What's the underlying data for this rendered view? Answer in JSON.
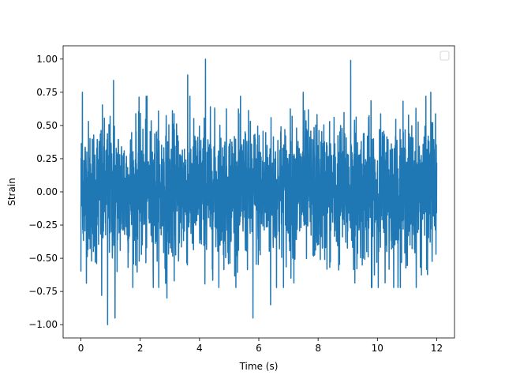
{
  "chart_data": {
    "type": "line",
    "title": "",
    "xlabel": "Time (s)",
    "ylabel": "Strain",
    "xlim": [
      -0.6,
      12.6
    ],
    "ylim": [
      -1.1,
      1.1
    ],
    "x_ticks": [
      0,
      2,
      4,
      6,
      8,
      10,
      12
    ],
    "x_tick_labels": [
      "0",
      "2",
      "4",
      "6",
      "8",
      "10",
      "12"
    ],
    "y_ticks": [
      -1.0,
      -0.75,
      -0.5,
      -0.25,
      0.0,
      0.25,
      0.5,
      0.75,
      1.0
    ],
    "y_tick_labels": [
      "−1.00",
      "−0.75",
      "−0.50",
      "−0.25",
      "0.00",
      "0.25",
      "0.50",
      "0.75",
      "1.00"
    ],
    "grid": false,
    "legend": {
      "placement": "upper-right",
      "entries": []
    },
    "series": [
      {
        "color": "#1f77b4",
        "x_start": 0.0,
        "x_end": 12.0,
        "typical_range": [
          -0.55,
          0.55
        ],
        "peaks": [
          {
            "x": 4.2,
            "y": 1.0
          },
          {
            "x": 9.1,
            "y": 0.99
          },
          {
            "x": 3.6,
            "y": 0.88
          },
          {
            "x": 1.1,
            "y": 0.84
          },
          {
            "x": 7.5,
            "y": 0.75
          },
          {
            "x": 0.05,
            "y": 0.75
          },
          {
            "x": 2.2,
            "y": 0.72
          },
          {
            "x": 11.8,
            "y": 0.75
          }
        ],
        "troughs": [
          {
            "x": 0.9,
            "y": -1.0
          },
          {
            "x": 1.15,
            "y": -0.95
          },
          {
            "x": 5.8,
            "y": -0.95
          },
          {
            "x": 6.4,
            "y": -0.85
          },
          {
            "x": 0.7,
            "y": -0.78
          },
          {
            "x": 2.9,
            "y": -0.8
          },
          {
            "x": 9.8,
            "y": -0.72
          },
          {
            "x": 0.0,
            "y": -0.6
          }
        ]
      }
    ]
  }
}
